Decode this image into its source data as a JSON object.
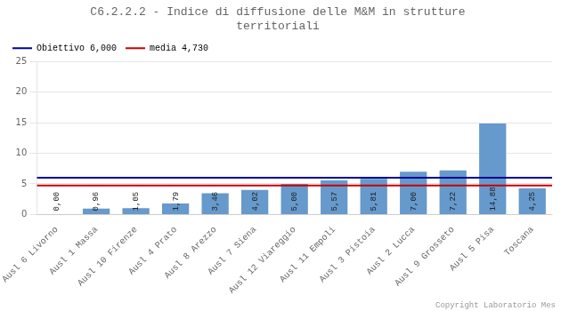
{
  "chart_data": {
    "type": "bar",
    "title": "C6.2.2.2 - Indice di diffusione delle M&M in strutture\nterritoriali",
    "categories": [
      "Ausl 6 Livorno",
      "Ausl 1 Massa",
      "Ausl 10 Firenze",
      "Ausl 4 Prato",
      "Ausl 8 Arezzo",
      "Ausl 7 Siena",
      "Ausl 12 Viareggio",
      "Ausl 11 Empoli",
      "Ausl 3 Pistoia",
      "Ausl 2 Lucca",
      "Ausl 9 Grosseto",
      "Ausl 5 Pisa",
      "Toscana"
    ],
    "values": [
      0.0,
      0.96,
      1.05,
      1.79,
      3.46,
      4.02,
      5.0,
      5.57,
      5.81,
      7.0,
      7.22,
      14.88,
      4.25
    ],
    "value_labels": [
      "0,00",
      "0,96",
      "1,05",
      "1,79",
      "3,46",
      "4,02",
      "5,00",
      "5,57",
      "5,81",
      "7,00",
      "7,22",
      "14,88",
      "4,25"
    ],
    "data_labels": true,
    "color": "#6699CC",
    "reference_lines": [
      {
        "name": "Obiettivo 6,000",
        "value": 6.0,
        "color": "#000099"
      },
      {
        "name": "media 4,730",
        "value": 4.73,
        "color": "#CC0000"
      }
    ],
    "ylim": [
      0,
      25
    ],
    "yticks": [
      0,
      5,
      10,
      15,
      20,
      25
    ],
    "grid": true,
    "legend": "upper left",
    "annotation": "Copyright Laboratorio Mes"
  }
}
